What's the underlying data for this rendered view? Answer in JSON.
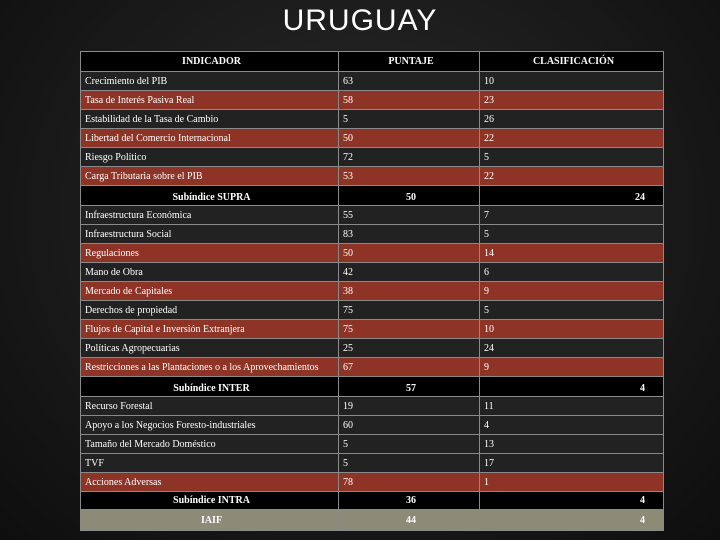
{
  "title": "URUGUAY",
  "headers": [
    "INDICADOR",
    "PUNTAJE",
    "CLASIFICACIÓN"
  ],
  "supra": {
    "rows": [
      {
        "indicator": "Crecimiento del PIB",
        "score": "63",
        "rank": "10",
        "style": "dark"
      },
      {
        "indicator": "Tasa de Interés Pasiva Real",
        "score": "58",
        "rank": "23",
        "style": "red"
      },
      {
        "indicator": "Estabilidad de la Tasa de Cambio",
        "score": "5",
        "rank": "26",
        "style": "dark"
      },
      {
        "indicator": "Libertad del Comercio Internacional",
        "score": "50",
        "rank": "22",
        "style": "red"
      },
      {
        "indicator": "Riesgo Político",
        "score": "72",
        "rank": "5",
        "style": "dark"
      },
      {
        "indicator": "Carga Tributaria sobre el PIB",
        "score": "53",
        "rank": "22",
        "style": "red"
      }
    ],
    "subtotal": {
      "label": "Subíndice SUPRA",
      "score": "50",
      "rank": "24"
    }
  },
  "inter": {
    "rows": [
      {
        "indicator": "Infraestructura Económica",
        "score": "55",
        "rank": "7",
        "style": "dark"
      },
      {
        "indicator": "Infraestructura Social",
        "score": "83",
        "rank": "5",
        "style": "dark"
      },
      {
        "indicator": "Regulaciones",
        "score": "50",
        "rank": "14",
        "style": "red"
      },
      {
        "indicator": "Mano de Obra",
        "score": "42",
        "rank": "6",
        "style": "dark"
      },
      {
        "indicator": "Mercado de Capitales",
        "score": "38",
        "rank": "9",
        "style": "red"
      },
      {
        "indicator": "Derechos de propiedad",
        "score": "75",
        "rank": "5",
        "style": "dark"
      },
      {
        "indicator": "Flujos de Capital e Inversión Extranjera",
        "score": "75",
        "rank": "10",
        "style": "red"
      },
      {
        "indicator": "Políticas Agropecuarias",
        "score": "25",
        "rank": "24",
        "style": "dark"
      },
      {
        "indicator": "Restricciones a las Plantaciones o a los Aprovechamientos",
        "score": "67",
        "rank": "9",
        "style": "red"
      }
    ],
    "subtotal": {
      "label": "Subíndice INTER",
      "score": "57",
      "rank": "4"
    }
  },
  "intra": {
    "rows": [
      {
        "indicator": "Recurso Forestal",
        "score": "19",
        "rank": "11",
        "style": "dark"
      },
      {
        "indicator": "Apoyo a los Negocios Foresto-industriales",
        "score": "60",
        "rank": "4",
        "style": "dark"
      },
      {
        "indicator": "Tamaño del Mercado Doméstico",
        "score": "5",
        "rank": "13",
        "style": "dark"
      },
      {
        "indicator": "TVF",
        "score": "5",
        "rank": "17",
        "style": "dark"
      },
      {
        "indicator": "Acciones Adversas",
        "score": "78",
        "rank": "1",
        "style": "red"
      }
    ],
    "subtotal": {
      "label": "Subíndice INTRA",
      "score": "36",
      "rank": "4"
    }
  },
  "iaif": {
    "label": "IAIF",
    "score": "44",
    "rank": "4"
  }
}
